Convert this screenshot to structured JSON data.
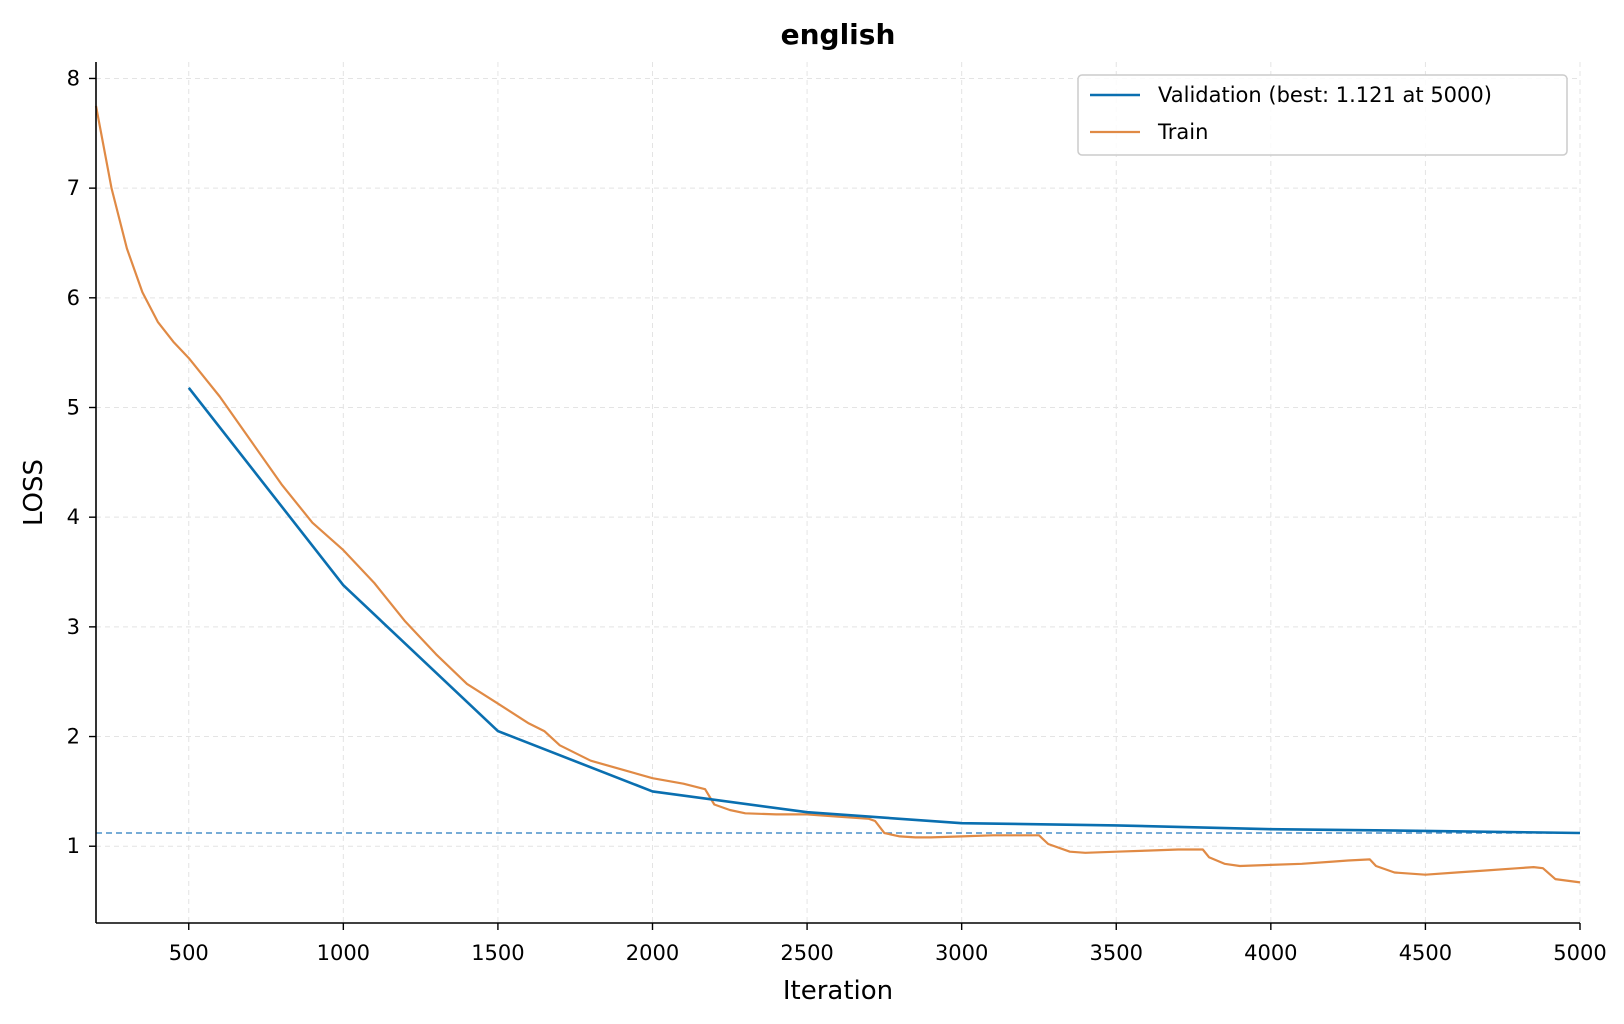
{
  "chart_data": {
    "type": "line",
    "title": "english",
    "xlabel": "Iteration",
    "ylabel": "LOSS",
    "xlim": [
      200,
      5000
    ],
    "ylim": [
      0.3,
      8.15
    ],
    "xticks": [
      500,
      1000,
      1500,
      2000,
      2500,
      3000,
      3500,
      4000,
      4500,
      5000
    ],
    "yticks": [
      1,
      2,
      3,
      4,
      5,
      6,
      7,
      8
    ],
    "grid": true,
    "legend_position": "top-right",
    "best_line": {
      "y": 1.121,
      "color": "#4a90c8"
    },
    "series": [
      {
        "name": "Validation (best: 1.121 at 5000)",
        "color": "#0a6fb0",
        "x": [
          500,
          1000,
          1500,
          2000,
          2500,
          3000,
          3500,
          4000,
          4500,
          5000
        ],
        "y": [
          5.18,
          3.38,
          2.05,
          1.5,
          1.31,
          1.21,
          1.19,
          1.155,
          1.14,
          1.121
        ]
      },
      {
        "name": "Train",
        "color": "#e08a45",
        "x": [
          200,
          250,
          300,
          350,
          400,
          450,
          500,
          600,
          700,
          800,
          900,
          1000,
          1100,
          1200,
          1300,
          1400,
          1500,
          1600,
          1650,
          1700,
          1800,
          1900,
          2000,
          2100,
          2170,
          2200,
          2250,
          2300,
          2400,
          2500,
          2600,
          2700,
          2720,
          2750,
          2800,
          2850,
          2900,
          3000,
          3100,
          3200,
          3250,
          3280,
          3350,
          3400,
          3500,
          3600,
          3700,
          3780,
          3800,
          3850,
          3900,
          4000,
          4100,
          4200,
          4250,
          4320,
          4340,
          4400,
          4500,
          4600,
          4700,
          4800,
          4850,
          4880,
          4920,
          5000
        ],
        "y": [
          7.75,
          7.0,
          6.45,
          6.05,
          5.78,
          5.6,
          5.45,
          5.1,
          4.7,
          4.3,
          3.95,
          3.7,
          3.4,
          3.05,
          2.75,
          2.48,
          2.3,
          2.12,
          2.05,
          1.92,
          1.78,
          1.7,
          1.62,
          1.57,
          1.52,
          1.38,
          1.33,
          1.3,
          1.29,
          1.29,
          1.27,
          1.25,
          1.23,
          1.12,
          1.09,
          1.08,
          1.08,
          1.09,
          1.1,
          1.1,
          1.1,
          1.02,
          0.95,
          0.94,
          0.95,
          0.96,
          0.97,
          0.97,
          0.9,
          0.84,
          0.82,
          0.83,
          0.84,
          0.86,
          0.87,
          0.88,
          0.82,
          0.76,
          0.74,
          0.76,
          0.78,
          0.8,
          0.81,
          0.8,
          0.7,
          0.67
        ]
      }
    ]
  }
}
